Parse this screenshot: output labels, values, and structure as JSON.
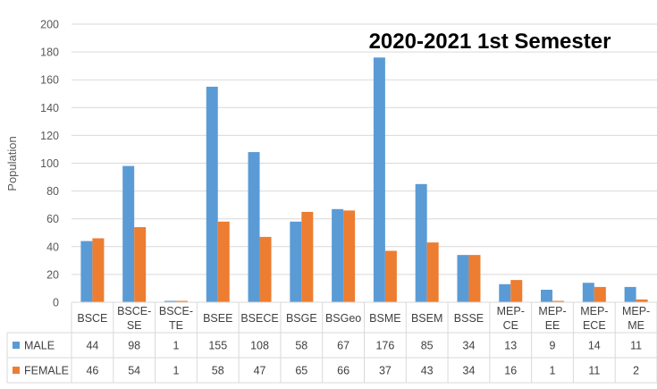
{
  "chart_data": {
    "type": "bar",
    "title": "2020-2021 1st Semester",
    "ylabel": "Population",
    "ylim": [
      0,
      200
    ],
    "yticks": [
      0,
      20,
      40,
      60,
      80,
      100,
      120,
      140,
      160,
      180,
      200
    ],
    "grid": true,
    "categories": [
      [
        "BSCE"
      ],
      [
        "BSCE-",
        "SE"
      ],
      [
        "BSCE-",
        "TE"
      ],
      [
        "BSEE"
      ],
      [
        "BSECE"
      ],
      [
        "BSGE"
      ],
      [
        "BSGeo"
      ],
      [
        "BSME"
      ],
      [
        "BSEM"
      ],
      [
        "BSSE"
      ],
      [
        "MEP-",
        "CE"
      ],
      [
        "MEP-",
        "EE"
      ],
      [
        "MEP-",
        "ECE"
      ],
      [
        "MEP-",
        "ME"
      ]
    ],
    "series": [
      {
        "name": "MALE",
        "color": "#5B9BD5",
        "values": [
          44,
          98,
          1,
          155,
          108,
          58,
          67,
          176,
          85,
          34,
          13,
          9,
          14,
          11
        ]
      },
      {
        "name": "FEMALE",
        "color": "#ED7D31",
        "values": [
          46,
          54,
          1,
          58,
          47,
          65,
          66,
          37,
          43,
          34,
          16,
          1,
          11,
          2
        ]
      }
    ],
    "legend": "table-rows"
  }
}
